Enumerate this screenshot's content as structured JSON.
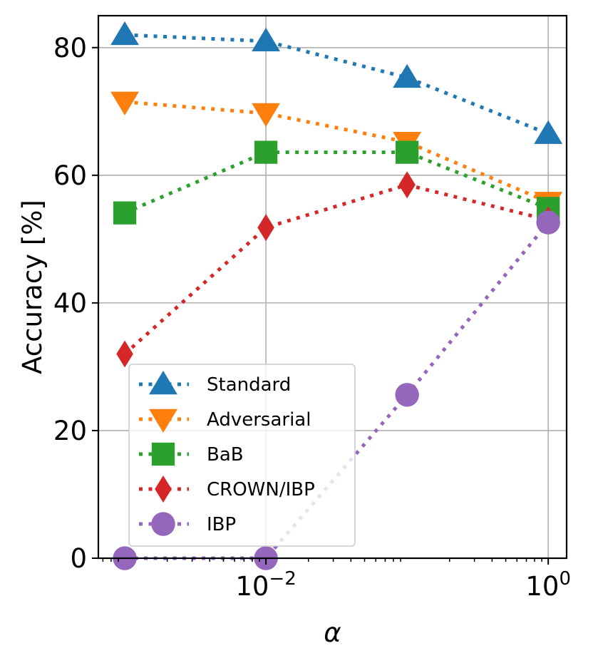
{
  "chart_data": {
    "type": "line",
    "title": "",
    "xlabel": "α",
    "ylabel": "Accuracy [%]",
    "xscale": "log",
    "xlim": [
      0.00065,
      1.35
    ],
    "ylim": [
      0,
      85
    ],
    "grid": true,
    "legend_position": "lower-left",
    "x": [
      0.001,
      0.01,
      0.1,
      1
    ],
    "xticks": [
      {
        "value": 0.01,
        "base": "10",
        "exp": "−2"
      },
      {
        "value": 1,
        "base": "10",
        "exp": "0"
      }
    ],
    "yticks": [
      0,
      20,
      40,
      60,
      80
    ],
    "series": [
      {
        "name": "Standard",
        "color": "#1f77b4",
        "marker": "triangle-up",
        "values": [
          82,
          81,
          75.3,
          66.5
        ]
      },
      {
        "name": "Adversarial",
        "color": "#ff7f0e",
        "marker": "triangle-down",
        "values": [
          71.5,
          69.7,
          65.2,
          55.8
        ]
      },
      {
        "name": "BaB",
        "color": "#2ca02c",
        "marker": "square",
        "values": [
          54.1,
          63.6,
          63.6,
          54.8
        ]
      },
      {
        "name": "CROWN/IBP",
        "color": "#d62728",
        "marker": "diamond",
        "values": [
          32,
          51.8,
          58.5,
          53
        ]
      },
      {
        "name": "IBP",
        "color": "#9467bd",
        "marker": "circle",
        "values": [
          0,
          0,
          25.6,
          52.6
        ]
      }
    ]
  }
}
